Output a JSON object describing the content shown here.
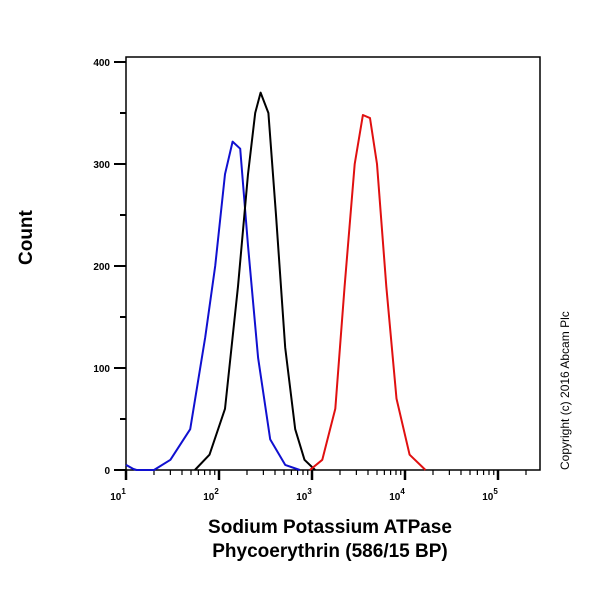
{
  "chart_data": {
    "type": "line",
    "xlabel_line1": "Sodium Potassium ATPase",
    "xlabel_line2": "Phycoerythrin (586/15 BP)",
    "ylabel": "Count",
    "x_scale": "log",
    "xlim": [
      10,
      280000
    ],
    "ylim": [
      0,
      400
    ],
    "yticks": [
      0,
      100,
      200,
      300,
      400
    ],
    "xticks": [
      {
        "base": "10",
        "exp": "1",
        "value": 10
      },
      {
        "base": "10",
        "exp": "2",
        "value": 100
      },
      {
        "base": "10",
        "exp": "3",
        "value": 1000
      },
      {
        "base": "10",
        "exp": "4",
        "value": 10000
      },
      {
        "base": "10",
        "exp": "5",
        "value": 100000
      }
    ],
    "grid": false,
    "series": [
      {
        "color": "#1010d0",
        "x": [
          10,
          12,
          13,
          20,
          30,
          49,
          71,
          91,
          116,
          140,
          169,
          205,
          263,
          355,
          515,
          740
        ],
        "y": [
          5,
          1,
          0,
          0,
          10,
          40,
          130,
          200,
          290,
          322,
          315,
          220,
          110,
          30,
          5,
          0
        ]
      },
      {
        "color": "#000000",
        "x": [
          55,
          79,
          116,
          160,
          205,
          245,
          280,
          340,
          410,
          515,
          660,
          830,
          1080
        ],
        "y": [
          0,
          15,
          60,
          180,
          290,
          350,
          370,
          350,
          250,
          120,
          40,
          10,
          0
        ]
      },
      {
        "color": "#e01010",
        "x": [
          950,
          1290,
          1780,
          2240,
          2880,
          3530,
          4200,
          5000,
          6300,
          8100,
          11200,
          16600
        ],
        "y": [
          0,
          10,
          60,
          180,
          300,
          348,
          345,
          300,
          180,
          70,
          15,
          0
        ]
      }
    ]
  },
  "copyright": "Copyright (c) 2016 Abcam Plc"
}
